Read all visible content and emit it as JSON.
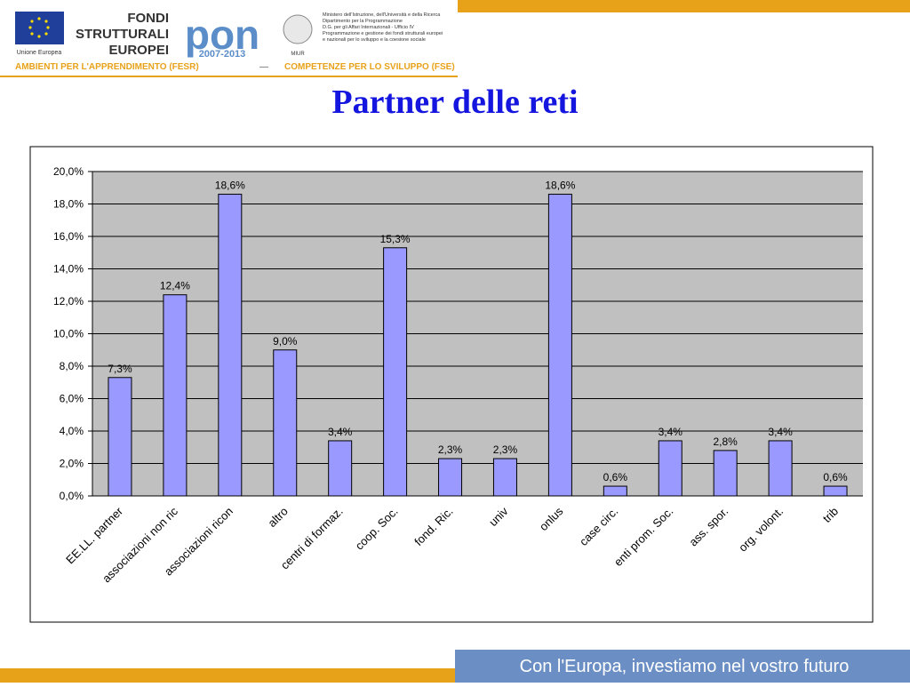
{
  "header": {
    "eu_label": "Unione Europea",
    "fondi": [
      "FONDI",
      "STRUTTURALI",
      "EUROPEI"
    ],
    "pon": "PON",
    "pon_years": "2007-2013",
    "ministry": [
      "Ministero dell'Istruzione, dell'Università e della Ricerca",
      "Dipartimento per la Programmazione",
      "D.G. per gli Affari Internazionali - Ufficio IV",
      "Programmazione e gestione dei fondi strutturali europei",
      "e nazionali per lo sviluppo e la coesione sociale"
    ],
    "miur": "MIUR",
    "fesr": "AMBIENTI PER L'APPRENDIMENTO (FESR)",
    "dash": "—",
    "fse": "COMPETENZE PER LO SVILUPPO (FSE)"
  },
  "footer": {
    "slogan": "Con l'Europa, investiamo nel vostro futuro"
  },
  "chart_data": {
    "type": "bar",
    "title": "Partner delle reti",
    "categories": [
      "EE.LL. partner",
      "associazioni non ric",
      "associazioni ricon",
      "altro",
      "centri di formaz.",
      "coop. Soc.",
      "fond. Ric.",
      "univ",
      "onlus",
      "case circ.",
      "enti prom. Soc.",
      "ass. spor.",
      "org. volont.",
      "trib"
    ],
    "values": [
      7.3,
      12.4,
      18.6,
      9.0,
      3.4,
      15.3,
      2.3,
      2.3,
      18.6,
      0.6,
      3.4,
      2.8,
      3.4,
      0.6
    ],
    "value_labels": [
      "7,3%",
      "12,4%",
      "18,6%",
      "9,0%",
      "3,4%",
      "15,3%",
      "2,3%",
      "2,3%",
      "18,6%",
      "0,6%",
      "3,4%",
      "2,8%",
      "3,4%",
      "0,6%"
    ],
    "color": "#9999ff",
    "ylim": [
      0,
      20
    ],
    "yticks": [
      {
        "value": 0,
        "label": "0,0%"
      },
      {
        "value": 2,
        "label": "2,0%"
      },
      {
        "value": 4,
        "label": "4,0%"
      },
      {
        "value": 6,
        "label": "6,0%"
      },
      {
        "value": 8,
        "label": "8,0%"
      },
      {
        "value": 10,
        "label": "10,0%"
      },
      {
        "value": 12,
        "label": "12,0%"
      },
      {
        "value": 14,
        "label": "14,0%"
      },
      {
        "value": 16,
        "label": "16,0%"
      },
      {
        "value": 18,
        "label": "18,0%"
      },
      {
        "value": 20,
        "label": "20,0%"
      }
    ],
    "grid": true
  }
}
